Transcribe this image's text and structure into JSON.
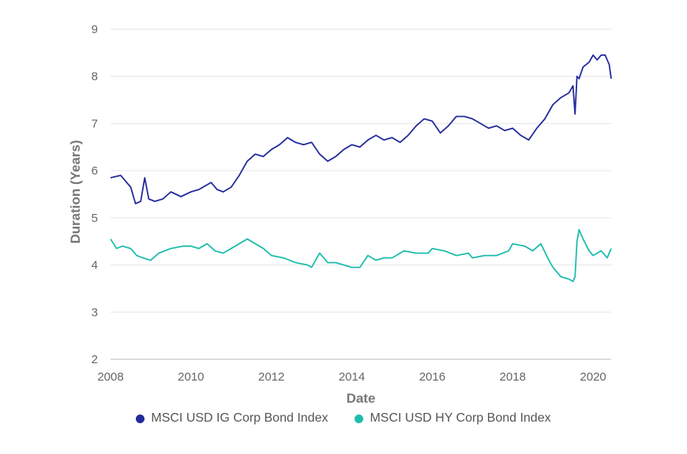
{
  "chart_data": {
    "type": "line",
    "title": "",
    "xlabel": "Date",
    "ylabel": "Duration (Years)",
    "xlim": [
      2008,
      2020.45
    ],
    "ylim": [
      2,
      9
    ],
    "x_ticks": [
      2008,
      2010,
      2012,
      2014,
      2016,
      2018,
      2020
    ],
    "y_ticks": [
      2,
      3,
      4,
      5,
      6,
      7,
      8,
      9
    ],
    "grid": "horizontal",
    "legend_position": "bottom",
    "series": [
      {
        "name": "MSCI USD IG Corp Bond Index",
        "color": "#232b9c",
        "x": [
          2008.0,
          2008.25,
          2008.5,
          2008.62,
          2008.75,
          2008.85,
          2008.95,
          2009.1,
          2009.3,
          2009.5,
          2009.75,
          2010.0,
          2010.2,
          2010.5,
          2010.65,
          2010.8,
          2011.0,
          2011.2,
          2011.4,
          2011.6,
          2011.8,
          2012.0,
          2012.2,
          2012.4,
          2012.6,
          2012.8,
          2013.0,
          2013.2,
          2013.4,
          2013.6,
          2013.8,
          2014.0,
          2014.2,
          2014.4,
          2014.6,
          2014.8,
          2015.0,
          2015.2,
          2015.4,
          2015.6,
          2015.8,
          2016.0,
          2016.2,
          2016.4,
          2016.6,
          2016.8,
          2017.0,
          2017.2,
          2017.4,
          2017.6,
          2017.8,
          2018.0,
          2018.2,
          2018.4,
          2018.6,
          2018.8,
          2019.0,
          2019.2,
          2019.4,
          2019.5,
          2019.55,
          2019.6,
          2019.65,
          2019.75,
          2019.9,
          2020.0,
          2020.1,
          2020.2,
          2020.3,
          2020.4,
          2020.45
        ],
        "values": [
          5.85,
          5.9,
          5.65,
          5.3,
          5.35,
          5.85,
          5.4,
          5.35,
          5.4,
          5.55,
          5.45,
          5.55,
          5.6,
          5.75,
          5.6,
          5.55,
          5.65,
          5.9,
          6.2,
          6.35,
          6.3,
          6.45,
          6.55,
          6.7,
          6.6,
          6.55,
          6.6,
          6.35,
          6.2,
          6.3,
          6.45,
          6.55,
          6.5,
          6.65,
          6.75,
          6.65,
          6.7,
          6.6,
          6.75,
          6.95,
          7.1,
          7.05,
          6.8,
          6.95,
          7.15,
          7.15,
          7.1,
          7.0,
          6.9,
          6.95,
          6.85,
          6.9,
          6.75,
          6.65,
          6.9,
          7.1,
          7.4,
          7.55,
          7.65,
          7.8,
          7.2,
          8.0,
          7.95,
          8.2,
          8.3,
          8.45,
          8.35,
          8.45,
          8.45,
          8.25,
          7.95
        ]
      },
      {
        "name": "MSCI USD HY Corp Bond Index",
        "color": "#1dbdad",
        "x": [
          2008.0,
          2008.15,
          2008.3,
          2008.5,
          2008.65,
          2008.8,
          2009.0,
          2009.2,
          2009.5,
          2009.8,
          2010.0,
          2010.2,
          2010.4,
          2010.6,
          2010.8,
          2011.0,
          2011.2,
          2011.4,
          2011.6,
          2011.8,
          2012.0,
          2012.3,
          2012.6,
          2012.9,
          2013.0,
          2013.2,
          2013.4,
          2013.6,
          2013.8,
          2014.0,
          2014.2,
          2014.4,
          2014.6,
          2014.8,
          2015.0,
          2015.3,
          2015.6,
          2015.9,
          2016.0,
          2016.3,
          2016.6,
          2016.9,
          2017.0,
          2017.3,
          2017.6,
          2017.9,
          2018.0,
          2018.3,
          2018.5,
          2018.7,
          2018.9,
          2019.0,
          2019.2,
          2019.4,
          2019.5,
          2019.55,
          2019.6,
          2019.65,
          2019.75,
          2019.9,
          2020.0,
          2020.2,
          2020.35,
          2020.45
        ],
        "values": [
          4.55,
          4.35,
          4.4,
          4.35,
          4.2,
          4.15,
          4.1,
          4.25,
          4.35,
          4.4,
          4.4,
          4.35,
          4.45,
          4.3,
          4.25,
          4.35,
          4.45,
          4.55,
          4.45,
          4.35,
          4.2,
          4.15,
          4.05,
          4.0,
          3.95,
          4.25,
          4.05,
          4.05,
          4.0,
          3.95,
          3.95,
          4.2,
          4.1,
          4.15,
          4.15,
          4.3,
          4.25,
          4.25,
          4.35,
          4.3,
          4.2,
          4.25,
          4.15,
          4.2,
          4.2,
          4.3,
          4.45,
          4.4,
          4.3,
          4.45,
          4.1,
          3.95,
          3.75,
          3.7,
          3.65,
          3.75,
          4.5,
          4.75,
          4.55,
          4.3,
          4.2,
          4.3,
          4.15,
          4.35
        ]
      }
    ]
  }
}
